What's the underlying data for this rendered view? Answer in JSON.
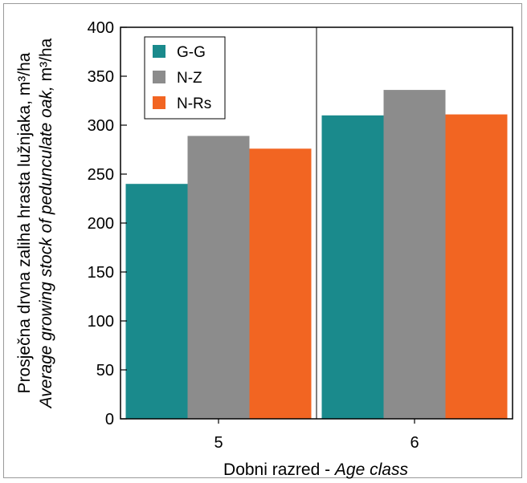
{
  "chart_data": {
    "type": "bar",
    "categories": [
      "5",
      "6"
    ],
    "series": [
      {
        "name": "G-G",
        "color": "#1a8a8c",
        "values": [
          240,
          310
        ]
      },
      {
        "name": "N-Z",
        "color": "#8c8c8c",
        "values": [
          289,
          336
        ]
      },
      {
        "name": "N-Rs",
        "color": "#f26522",
        "values": [
          276,
          311
        ]
      }
    ],
    "ylim": [
      0,
      400
    ],
    "yticks": [
      0,
      50,
      100,
      150,
      200,
      250,
      300,
      350,
      400
    ],
    "xlabel": {
      "main": "Dobni razred - ",
      "italic": "Age class"
    },
    "ylabel": {
      "line1": "Prosječna drvna zaliha hrasta lužnjaka, m³/ha",
      "line2_italic": "Average growing stock of pedunculate oak,",
      "line2_unit": " m³/ha"
    },
    "legend_position": "top-left",
    "grid": false
  }
}
